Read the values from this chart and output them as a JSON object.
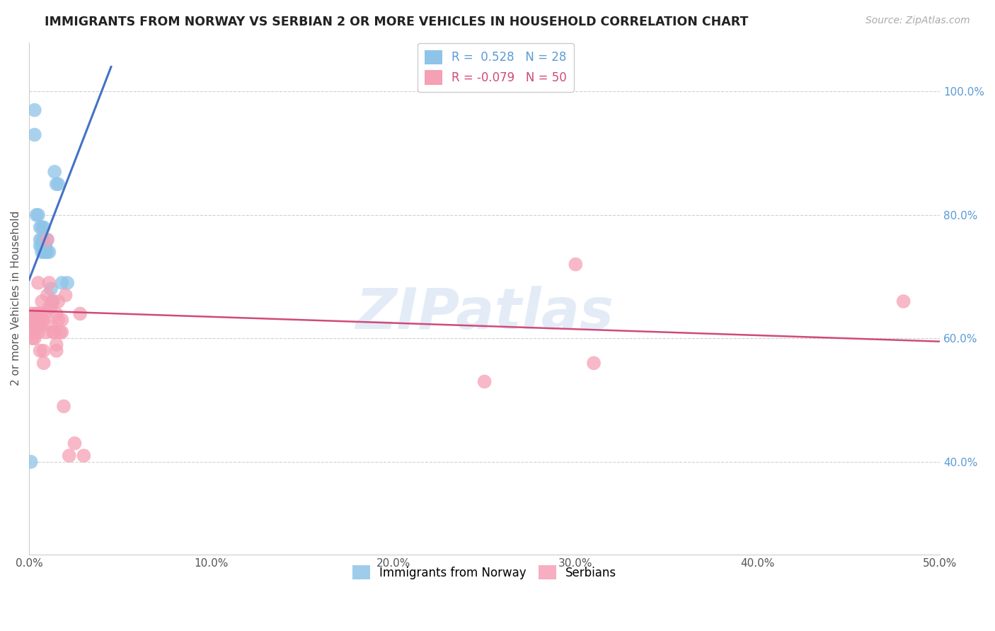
{
  "title": "IMMIGRANTS FROM NORWAY VS SERBIAN 2 OR MORE VEHICLES IN HOUSEHOLD CORRELATION CHART",
  "source": "Source: ZipAtlas.com",
  "ylabel": "2 or more Vehicles in Household",
  "xlim": [
    0.0,
    0.5
  ],
  "ylim": [
    0.25,
    1.08
  ],
  "xticks": [
    0.0,
    0.1,
    0.2,
    0.3,
    0.4,
    0.5
  ],
  "xticklabels": [
    "0.0%",
    "10.0%",
    "20.0%",
    "30.0%",
    "40.0%",
    "50.0%"
  ],
  "ytick_vals": [
    0.4,
    0.6,
    0.8,
    1.0
  ],
  "yticklabels_right": [
    "40.0%",
    "60.0%",
    "80.0%",
    "100.0%"
  ],
  "norway_R": 0.528,
  "norway_N": 28,
  "serbian_R": -0.079,
  "serbian_N": 50,
  "norway_color": "#8ec4e8",
  "serbian_color": "#f5a0b5",
  "norway_line_color": "#4472c4",
  "serbian_line_color": "#d04a7a",
  "watermark": "ZIPatlas",
  "norway_x": [
    0.001,
    0.003,
    0.003,
    0.004,
    0.005,
    0.006,
    0.006,
    0.006,
    0.007,
    0.007,
    0.007,
    0.007,
    0.008,
    0.008,
    0.008,
    0.009,
    0.009,
    0.01,
    0.01,
    0.011,
    0.012,
    0.013,
    0.014,
    0.015,
    0.016,
    0.018,
    0.021,
    0.001
  ],
  "norway_y": [
    0.63,
    0.97,
    0.93,
    0.8,
    0.8,
    0.78,
    0.76,
    0.75,
    0.78,
    0.76,
    0.75,
    0.74,
    0.78,
    0.76,
    0.74,
    0.75,
    0.74,
    0.76,
    0.74,
    0.74,
    0.68,
    0.66,
    0.87,
    0.85,
    0.85,
    0.69,
    0.69,
    0.4
  ],
  "serbian_x": [
    0.001,
    0.001,
    0.002,
    0.002,
    0.002,
    0.003,
    0.003,
    0.003,
    0.004,
    0.004,
    0.005,
    0.005,
    0.005,
    0.006,
    0.006,
    0.006,
    0.007,
    0.007,
    0.008,
    0.008,
    0.008,
    0.009,
    0.009,
    0.01,
    0.01,
    0.011,
    0.011,
    0.012,
    0.012,
    0.013,
    0.013,
    0.014,
    0.015,
    0.015,
    0.015,
    0.016,
    0.016,
    0.017,
    0.018,
    0.018,
    0.019,
    0.02,
    0.022,
    0.025,
    0.028,
    0.03,
    0.3,
    0.31,
    0.48,
    0.25
  ],
  "serbian_y": [
    0.64,
    0.62,
    0.63,
    0.61,
    0.6,
    0.64,
    0.62,
    0.6,
    0.64,
    0.62,
    0.69,
    0.63,
    0.61,
    0.64,
    0.62,
    0.58,
    0.66,
    0.63,
    0.63,
    0.58,
    0.56,
    0.64,
    0.61,
    0.76,
    0.67,
    0.69,
    0.65,
    0.65,
    0.62,
    0.66,
    0.61,
    0.61,
    0.64,
    0.58,
    0.59,
    0.66,
    0.63,
    0.61,
    0.63,
    0.61,
    0.49,
    0.67,
    0.41,
    0.43,
    0.64,
    0.41,
    0.72,
    0.56,
    0.66,
    0.53
  ],
  "norway_line_x0": 0.0,
  "norway_line_x1": 0.045,
  "norway_line_y0": 0.695,
  "norway_line_y1": 1.04,
  "serbian_line_x0": 0.0,
  "serbian_line_x1": 0.5,
  "serbian_line_y0": 0.645,
  "serbian_line_y1": 0.595
}
